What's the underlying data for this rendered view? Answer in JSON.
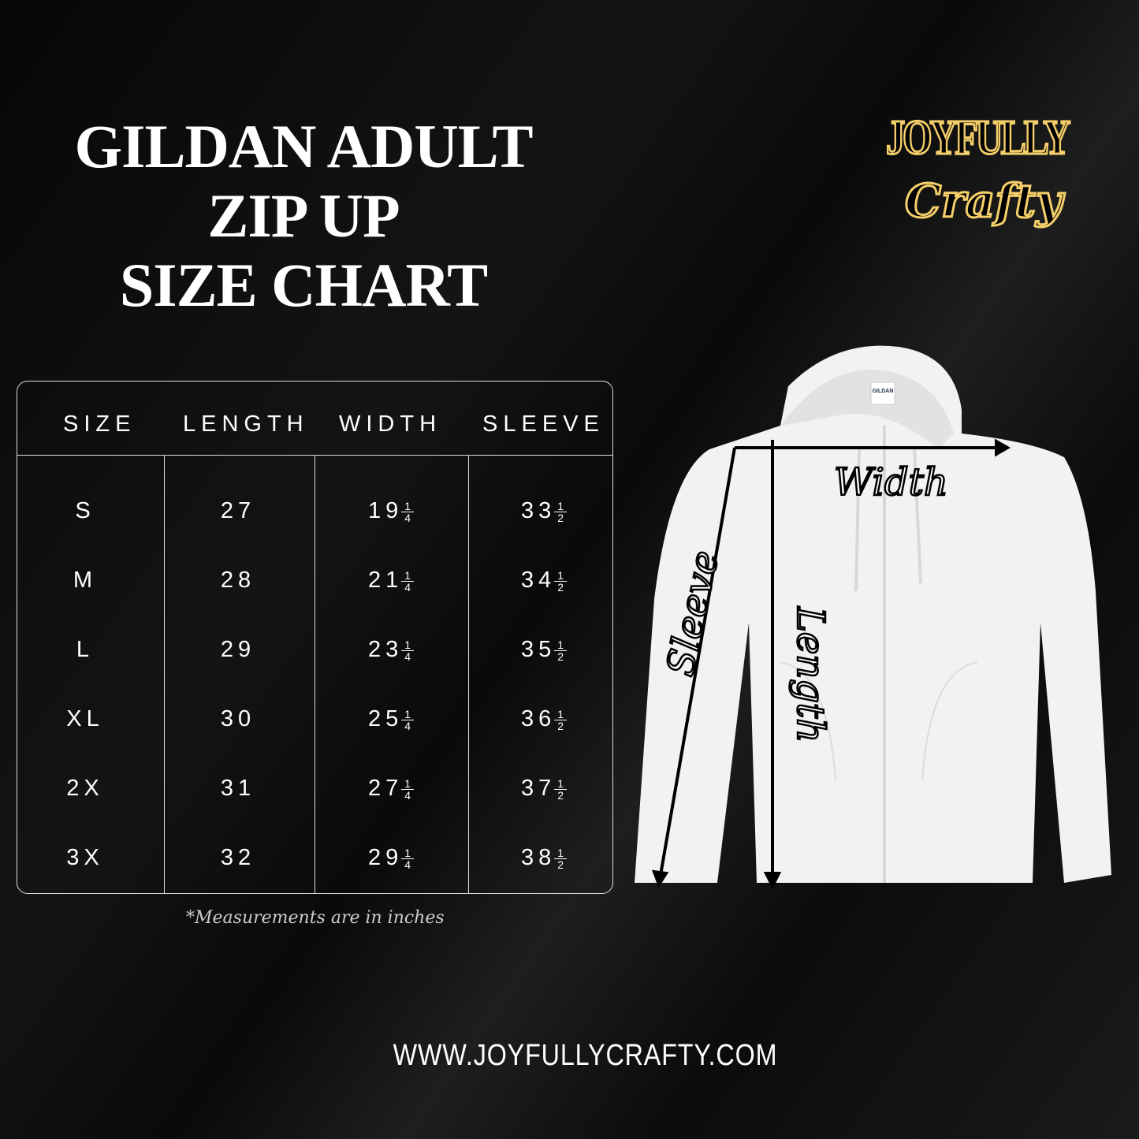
{
  "title": {
    "line1": "GILDAN ADULT",
    "line2": "ZIP UP",
    "line3": "SIZE CHART"
  },
  "logo": {
    "line1": "JOYFULLY",
    "line2": "Crafty",
    "color": "#f5cf6a"
  },
  "table": {
    "headers": [
      "SIZE",
      "LENGTH",
      "WIDTH",
      "SLEEVE"
    ],
    "rows": [
      {
        "size": "S",
        "length": "27",
        "width": "19",
        "width_frac": [
          "1",
          "4"
        ],
        "sleeve": "33",
        "sleeve_frac": [
          "1",
          "2"
        ]
      },
      {
        "size": "M",
        "length": "28",
        "width": "21",
        "width_frac": [
          "1",
          "4"
        ],
        "sleeve": "34",
        "sleeve_frac": [
          "1",
          "2"
        ]
      },
      {
        "size": "L",
        "length": "29",
        "width": "23",
        "width_frac": [
          "1",
          "4"
        ],
        "sleeve": "35",
        "sleeve_frac": [
          "1",
          "2"
        ]
      },
      {
        "size": "XL",
        "length": "30",
        "width": "25",
        "width_frac": [
          "1",
          "4"
        ],
        "sleeve": "36",
        "sleeve_frac": [
          "1",
          "2"
        ]
      },
      {
        "size": "2X",
        "length": "31",
        "width": "27",
        "width_frac": [
          "1",
          "4"
        ],
        "sleeve": "37",
        "sleeve_frac": [
          "1",
          "2"
        ]
      },
      {
        "size": "3X",
        "length": "32",
        "width": "29",
        "width_frac": [
          "1",
          "4"
        ],
        "sleeve": "38",
        "sleeve_frac": [
          "1",
          "2"
        ]
      }
    ]
  },
  "note": "*Measurements are in inches",
  "diagram": {
    "width_label": "Width",
    "sleeve_label": "Sleeve",
    "length_label": "Length",
    "tag": "GILDAN"
  },
  "footer": {
    "url": "WWW.JOYFULLYCRAFTY.COM"
  }
}
